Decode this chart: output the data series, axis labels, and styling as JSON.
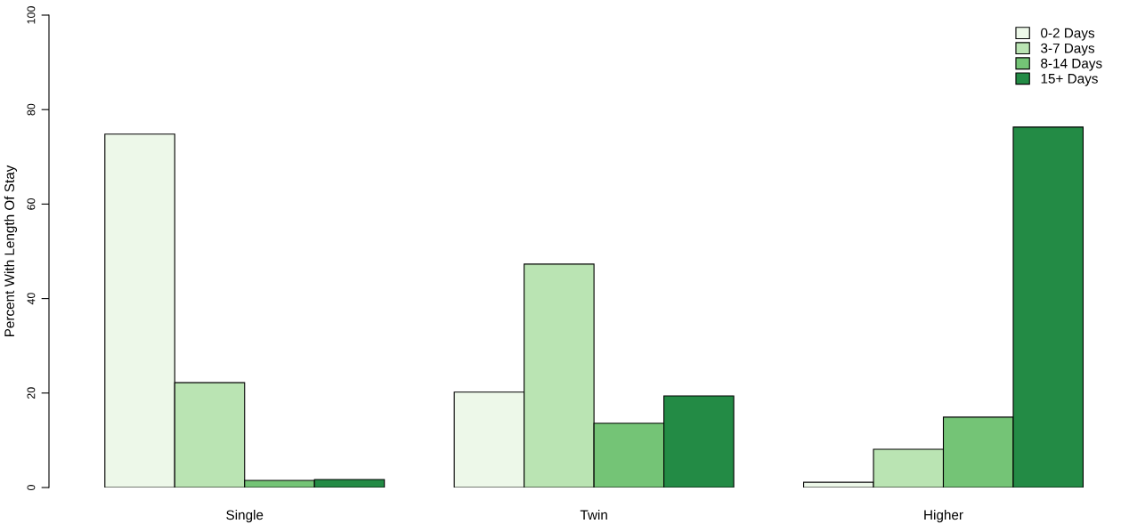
{
  "chart_data": {
    "type": "bar",
    "categories": [
      "Single",
      "Twin",
      "Higher"
    ],
    "ylabel": "Percent With Length Of Stay",
    "ylim": [
      0,
      100
    ],
    "yticks": [
      0,
      20,
      40,
      60,
      80,
      100
    ],
    "grid": false,
    "legend": "top right",
    "series": [
      {
        "name": "0-2 Days",
        "color": "#edf8e9",
        "values": [
          74.8,
          20.2,
          1.1
        ]
      },
      {
        "name": "3-7 Days",
        "color": "#bae4b3",
        "values": [
          22.2,
          47.3,
          8.1
        ]
      },
      {
        "name": "8-14 Days",
        "color": "#74c476",
        "values": [
          1.5,
          13.6,
          14.9
        ]
      },
      {
        "name": "15+ Days",
        "color": "#238b45",
        "values": [
          1.7,
          19.4,
          76.3
        ]
      }
    ]
  }
}
